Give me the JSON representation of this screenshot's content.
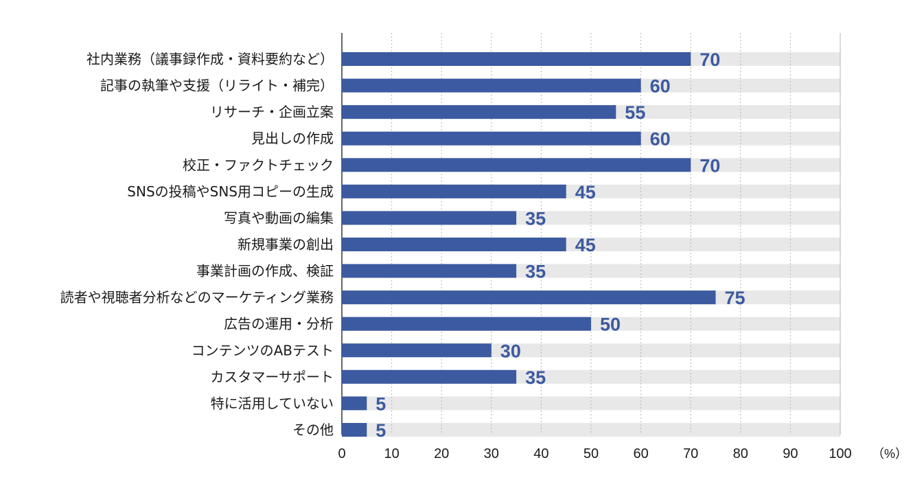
{
  "chart_data": {
    "type": "bar",
    "orientation": "horizontal",
    "categories": [
      "社内業務（議事録作成・資料要約など）",
      "記事の執筆や支援（リライト・補完）",
      "リサーチ・企画立案",
      "見出しの作成",
      "校正・ファクトチェック",
      "SNSの投稿やSNS用コピーの生成",
      "写真や動画の編集",
      "新規事業の創出",
      "事業計画の作成、検証",
      "読者や視聴者分析などのマーケティング業務",
      "広告の運用・分析",
      "コンテンツのABテスト",
      "カスタマーサポート",
      "特に活用していない",
      "その他"
    ],
    "values": [
      70,
      60,
      55,
      60,
      70,
      45,
      35,
      45,
      35,
      75,
      50,
      30,
      35,
      5,
      5
    ],
    "xlim": [
      0,
      100
    ],
    "xticks": [
      "0",
      "10",
      "20",
      "30",
      "40",
      "50",
      "60",
      "70",
      "80",
      "90",
      "100"
    ],
    "unit": "（%）",
    "grid": true,
    "background_bars": true,
    "colors": {
      "bar": "#3c5aa0",
      "label": "#3c5aa0",
      "track": "#e8e8e8",
      "grid": "#b4b4b4",
      "axis": "#333333"
    }
  }
}
